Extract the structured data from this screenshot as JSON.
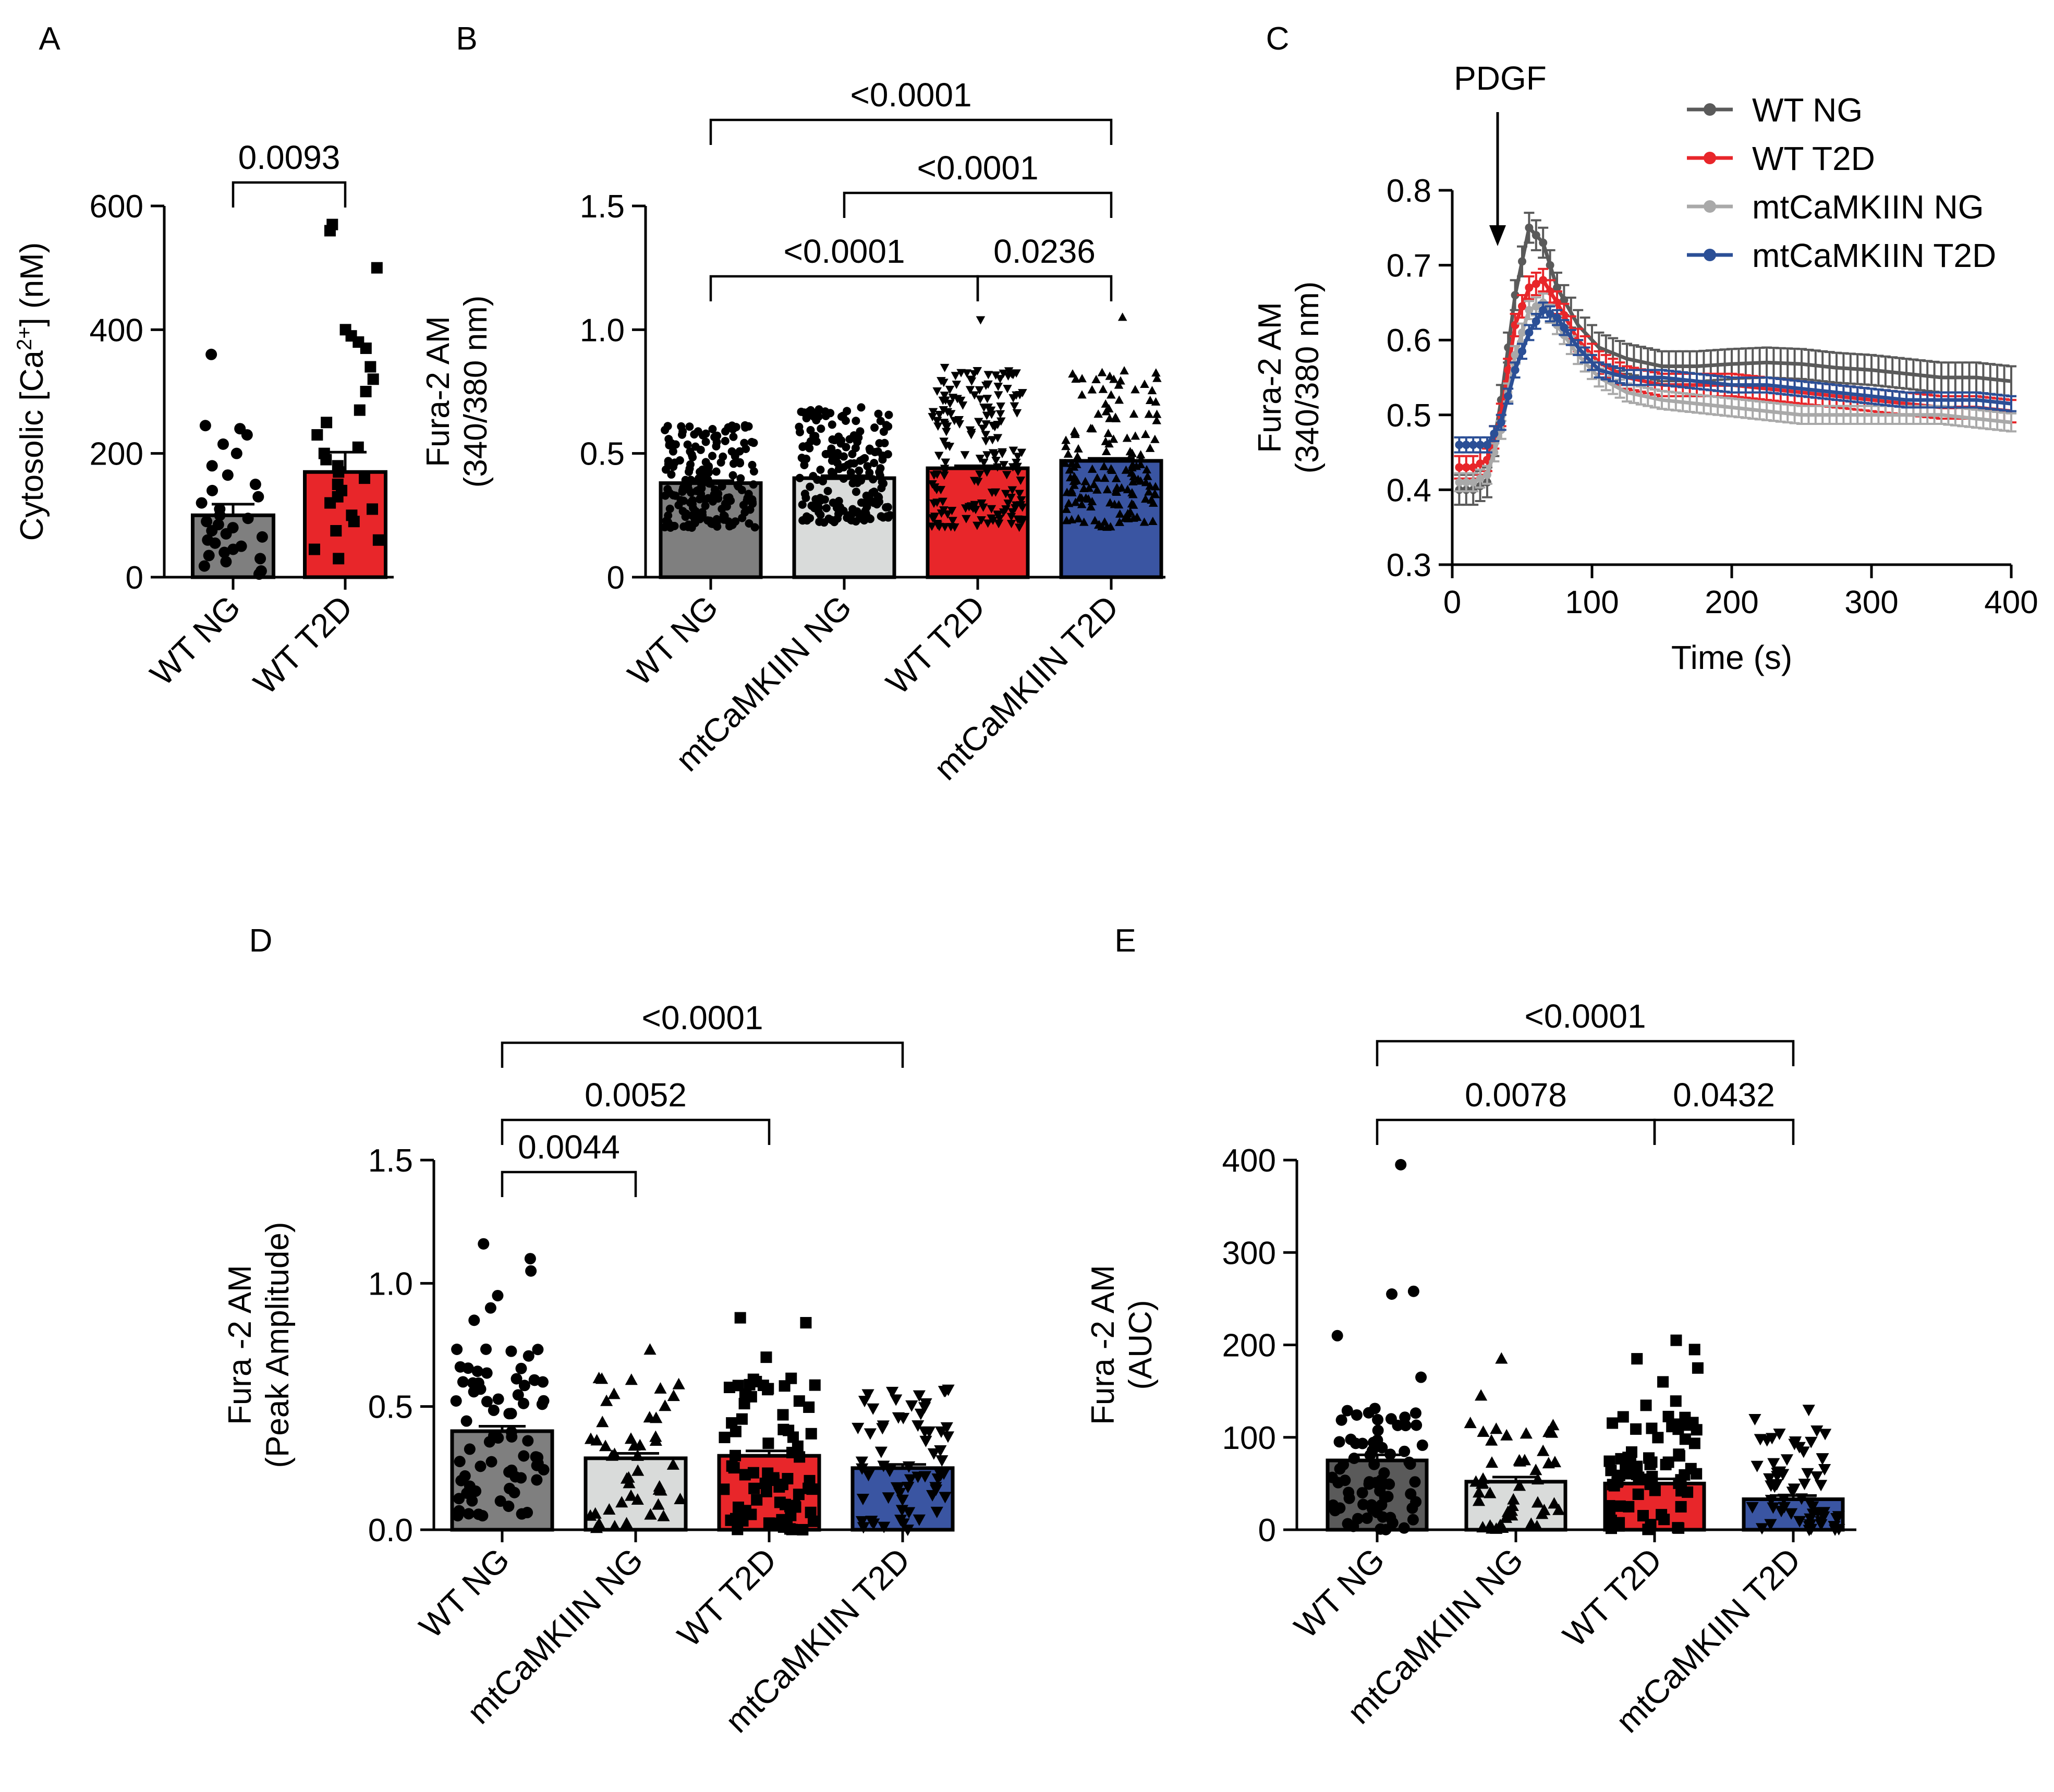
{
  "chart_data": [
    {
      "panel": "A",
      "type": "bar",
      "ylabel": "Cytosolic [Ca²⁺] (nM)",
      "ylim": [
        0,
        600
      ],
      "yticks": [
        0,
        200,
        400,
        600
      ],
      "categories": [
        "WT NG",
        "WT T2D"
      ],
      "values": [
        100,
        170
      ],
      "sem": [
        18,
        32
      ],
      "colors": [
        "#7f7f7f",
        "#e8262a"
      ],
      "marker": [
        "circle",
        "square"
      ],
      "points": [
        [
          5,
          10,
          18,
          25,
          30,
          35,
          40,
          45,
          50,
          55,
          60,
          65,
          70,
          75,
          80,
          85,
          90,
          95,
          100,
          110,
          120,
          130,
          140,
          150,
          165,
          180,
          200,
          215,
          230,
          240,
          245,
          360
        ],
        [
          30,
          45,
          60,
          75,
          90,
          100,
          110,
          120,
          130,
          140,
          150,
          160,
          170,
          180,
          190,
          200,
          210,
          230,
          250,
          270,
          300,
          320,
          340,
          370,
          380,
          390,
          400,
          500,
          560,
          570
        ]
      ],
      "comparisons": [
        {
          "from": 0,
          "to": 1,
          "label": "0.0093",
          "level": 1
        }
      ]
    },
    {
      "panel": "B",
      "type": "bar",
      "ylabel": "Fura-2 AM (340/380 nm)",
      "ylabel_lines": [
        "Fura-2 AM",
        "(340/380 nm)"
      ],
      "ylim": [
        0,
        1.5
      ],
      "yticks": [
        0.0,
        0.5,
        1.0,
        1.5
      ],
      "ytick_labels": [
        "0",
        "0.5",
        "1.0",
        "1.5"
      ],
      "categories": [
        "WT NG",
        "mtCaMKIIN NG",
        "WT T2D",
        "mtCaMKIIN T2D"
      ],
      "values": [
        0.38,
        0.4,
        0.44,
        0.47
      ],
      "sem": [
        0.01,
        0.01,
        0.01,
        0.01
      ],
      "colors": [
        "#7f7f7f",
        "#d9dbda",
        "#e8262a",
        "#3a55a2"
      ],
      "marker": [
        "circle",
        "circle",
        "triangle-down",
        "triangle-up"
      ],
      "point_ranges": [
        [
          0.2,
          0.62
        ],
        [
          0.22,
          0.69
        ],
        [
          0.2,
          0.85
        ],
        [
          0.2,
          0.85
        ]
      ],
      "point_counts": [
        180,
        180,
        180,
        150
      ],
      "outliers": [
        [],
        [],
        [
          1.04
        ],
        [
          1.05
        ]
      ],
      "comparisons": [
        {
          "from": 0,
          "to": 3,
          "label": "<0.0001",
          "level": 4
        },
        {
          "from": 1,
          "to": 3,
          "label": "<0.0001",
          "level": 3
        },
        {
          "from": 0,
          "to": 2,
          "label": "<0.0001",
          "level": 2
        },
        {
          "from": 2,
          "to": 3,
          "label": "0.0236",
          "level": 2
        }
      ]
    },
    {
      "panel": "C",
      "type": "line",
      "xlabel": "Time (s)",
      "ylabel": "Fura-2 AM (340/380 nm)",
      "ylabel_lines": [
        "Fura-2 AM",
        "(340/380 nm)"
      ],
      "xlim": [
        0,
        400
      ],
      "ylim": [
        0.3,
        0.8
      ],
      "xticks": [
        0,
        100,
        200,
        300,
        400
      ],
      "yticks": [
        0.3,
        0.4,
        0.5,
        0.6,
        0.7,
        0.8
      ],
      "annotation": {
        "text": "PDGF",
        "x": 25
      },
      "x": [
        5,
        15,
        25,
        35,
        45,
        55,
        65,
        75,
        90,
        105,
        125,
        150,
        175,
        200,
        225,
        250,
        275,
        300,
        325,
        350,
        375,
        400
      ],
      "series": [
        {
          "name": "WT NG",
          "color": "#5a5a5a",
          "y": [
            0.4,
            0.4,
            0.41,
            0.52,
            0.66,
            0.75,
            0.73,
            0.67,
            0.62,
            0.59,
            0.575,
            0.565,
            0.565,
            0.568,
            0.57,
            0.568,
            0.563,
            0.56,
            0.555,
            0.55,
            0.55,
            0.545
          ],
          "err": 0.02
        },
        {
          "name": "WT T2D",
          "color": "#e8262a",
          "y": [
            0.43,
            0.43,
            0.44,
            0.5,
            0.62,
            0.67,
            0.68,
            0.65,
            0.6,
            0.57,
            0.55,
            0.54,
            0.54,
            0.54,
            0.535,
            0.53,
            0.525,
            0.52,
            0.515,
            0.51,
            0.51,
            0.505
          ],
          "err": 0.015
        },
        {
          "name": "mtCaMKIIN NG",
          "color": "#a9a9a9",
          "y": [
            0.41,
            0.41,
            0.42,
            0.48,
            0.58,
            0.64,
            0.65,
            0.62,
            0.58,
            0.55,
            0.53,
            0.52,
            0.515,
            0.51,
            0.505,
            0.5,
            0.5,
            0.5,
            0.5,
            0.5,
            0.495,
            0.49
          ],
          "err": 0.012
        },
        {
          "name": "mtCaMKIIN T2D",
          "color": "#2b4f96",
          "y": [
            0.46,
            0.46,
            0.46,
            0.49,
            0.56,
            0.61,
            0.64,
            0.63,
            0.59,
            0.56,
            0.55,
            0.55,
            0.545,
            0.54,
            0.54,
            0.535,
            0.53,
            0.525,
            0.52,
            0.52,
            0.52,
            0.515
          ],
          "err": 0.01
        }
      ]
    },
    {
      "panel": "D",
      "type": "bar",
      "ylabel": "Fura -2 AM (Peak Amplitude)",
      "ylabel_lines": [
        "Fura -2 AM",
        "(Peak Amplitude)"
      ],
      "ylim": [
        0,
        1.5
      ],
      "yticks": [
        0.0,
        0.5,
        1.0,
        1.5
      ],
      "ytick_labels": [
        "0.0",
        "0.5",
        "1.0",
        "1.5"
      ],
      "categories": [
        "WT NG",
        "mtCaMKIIN NG",
        "WT T2D",
        "mtCaMKIIN T2D"
      ],
      "values": [
        0.4,
        0.29,
        0.3,
        0.25
      ],
      "sem": [
        0.02,
        0.02,
        0.02,
        0.015
      ],
      "colors": [
        "#7f7f7f",
        "#d9dbda",
        "#e8262a",
        "#3a55a2"
      ],
      "marker": [
        "circle",
        "triangle-up",
        "square",
        "triangle-down"
      ],
      "point_ranges": [
        [
          0.05,
          0.75
        ],
        [
          0.0,
          0.62
        ],
        [
          0.0,
          0.62
        ],
        [
          0.0,
          0.57
        ]
      ],
      "point_counts": [
        70,
        45,
        75,
        65
      ],
      "outliers": [
        [
          0.85,
          0.9,
          0.95,
          1.05,
          1.1,
          1.16
        ],
        [
          0.73
        ],
        [
          0.7,
          0.84,
          0.86
        ],
        []
      ],
      "comparisons": [
        {
          "from": 0,
          "to": 3,
          "label": "<0.0001",
          "level": 3
        },
        {
          "from": 0,
          "to": 2,
          "label": "0.0052",
          "level": 2
        },
        {
          "from": 0,
          "to": 1,
          "label": "0.0044",
          "level": 1
        }
      ]
    },
    {
      "panel": "E",
      "type": "bar",
      "ylabel": "Fura -2 AM (AUC)",
      "ylabel_lines": [
        "Fura -2 AM",
        "(AUC)"
      ],
      "ylim": [
        0,
        400
      ],
      "yticks": [
        0,
        100,
        200,
        300,
        400
      ],
      "categories": [
        "WT NG",
        "mtCaMKIIN NG",
        "WT T2D",
        "mtCaMKIIN T2D"
      ],
      "values": [
        75,
        52,
        50,
        33
      ],
      "sem": [
        6,
        5,
        5,
        4
      ],
      "colors": [
        "#5a5a5a",
        "#d9dbda",
        "#e8262a",
        "#3a55a2"
      ],
      "marker": [
        "circle",
        "triangle-up",
        "square",
        "triangle-down"
      ],
      "point_ranges": [
        [
          0,
          135
        ],
        [
          0,
          120
        ],
        [
          0,
          140
        ],
        [
          0,
          110
        ]
      ],
      "point_counts": [
        70,
        45,
        70,
        60
      ],
      "outliers": [
        [
          165,
          210,
          255,
          258,
          395
        ],
        [
          145,
          185
        ],
        [
          160,
          175,
          185,
          195,
          205
        ],
        [
          120,
          130
        ]
      ],
      "comparisons": [
        {
          "from": 0,
          "to": 3,
          "label": "<0.0001",
          "level": 2
        },
        {
          "from": 0,
          "to": 2,
          "label": "0.0078",
          "level": 1
        },
        {
          "from": 2,
          "to": 3,
          "label": "0.0432",
          "level": 1
        }
      ]
    }
  ]
}
